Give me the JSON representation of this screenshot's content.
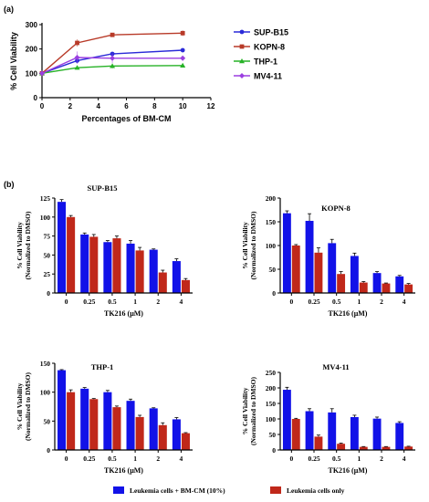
{
  "panel_a_label": "(a)",
  "panel_b_label": "(b)",
  "legend_bottom": [
    {
      "name": "Leukemia cells + BM-CM (10%)",
      "color": "#1212e8"
    },
    {
      "name": "Leukemia cells only",
      "color": "#c0281a"
    }
  ],
  "colors": {
    "blue": "#1212e8",
    "red": "#c0281a",
    "kopn": "#b83a28",
    "sup": "#2a2ad8",
    "thp": "#27b227",
    "mv4": "#9b3fe0"
  },
  "chart_data": [
    {
      "type": "line",
      "xlabel": "Percentages of BM-CM",
      "ylabel": "% Cell Viability",
      "xlim": [
        0,
        12
      ],
      "ylim": [
        0,
        300
      ],
      "xticks": [
        "0",
        "2",
        "4",
        "6",
        "8",
        "10",
        "12"
      ],
      "yticks": [
        "0",
        "100",
        "200",
        "300"
      ],
      "x": [
        0,
        2.5,
        5,
        10
      ],
      "legend_position": "right",
      "series": [
        {
          "name": "SUP-B15",
          "values": [
            100,
            152,
            180,
            195
          ],
          "errors": [
            3,
            12,
            5,
            8
          ],
          "marker": "circle",
          "color": "#2a2ad8"
        },
        {
          "name": "KOPN-8",
          "values": [
            100,
            225,
            258,
            265
          ],
          "errors": [
            3,
            15,
            5,
            12
          ],
          "marker": "square",
          "color": "#b83a28"
        },
        {
          "name": "THP-1",
          "values": [
            100,
            123,
            130,
            132
          ],
          "errors": [
            3,
            8,
            10,
            8
          ],
          "marker": "triangle",
          "color": "#27b227"
        },
        {
          "name": "MV4-11",
          "values": [
            100,
            165,
            162,
            162
          ],
          "errors": [
            3,
            25,
            20,
            10
          ],
          "marker": "diamond",
          "color": "#9b3fe0"
        }
      ]
    },
    {
      "type": "bar",
      "title": "SUP-B15",
      "xlabel": "TK216 (μM)",
      "ylabel": [
        "% Cell Viability",
        "(Normalized to DMSO)"
      ],
      "categories": [
        "0",
        "0.25",
        "0.5",
        "1",
        "2",
        "4"
      ],
      "ylim": [
        0,
        125
      ],
      "yticks": [
        "0",
        "25",
        "50",
        "75",
        "100",
        "125"
      ],
      "series": [
        {
          "name": "Leukemia cells + BM-CM (10%)",
          "values": [
            120,
            77,
            67,
            65,
            57,
            42
          ],
          "errors": [
            3,
            2,
            2,
            4,
            1,
            3
          ]
        },
        {
          "name": "Leukemia cells only",
          "values": [
            100,
            74,
            72,
            56,
            27,
            17
          ],
          "errors": [
            2,
            3,
            3,
            4,
            3,
            2
          ]
        }
      ]
    },
    {
      "type": "bar",
      "title": "KOPN-8",
      "xlabel": "TK216 (μM)",
      "ylabel": [
        "% Cell Viability",
        "(Normalized to DMSO)"
      ],
      "categories": [
        "0",
        "0.25",
        "0.5",
        "1",
        "2",
        "4"
      ],
      "ylim": [
        0,
        200
      ],
      "yticks": [
        "0",
        "50",
        "100",
        "150",
        "200"
      ],
      "series": [
        {
          "name": "Leukemia cells + BM-CM (10%)",
          "values": [
            168,
            152,
            105,
            78,
            42,
            35
          ],
          "errors": [
            5,
            15,
            8,
            6,
            3,
            2
          ]
        },
        {
          "name": "Leukemia cells only",
          "values": [
            100,
            85,
            40,
            22,
            20,
            18
          ],
          "errors": [
            2,
            10,
            5,
            2,
            1,
            2
          ]
        }
      ]
    },
    {
      "type": "bar",
      "title": "THP-1",
      "xlabel": "TK216 (μM)",
      "ylabel": [
        "% Cell Viability",
        "(Normalized to DMSO)"
      ],
      "categories": [
        "0",
        "0.25",
        "0.5",
        "1",
        "2",
        "4"
      ],
      "ylim": [
        0,
        150
      ],
      "yticks": [
        "0",
        "50",
        "100",
        "150"
      ],
      "series": [
        {
          "name": "Leukemia cells + BM-CM (10%)",
          "values": [
            138,
            106,
            100,
            85,
            72,
            53
          ],
          "errors": [
            1,
            2,
            3,
            3,
            1,
            3
          ]
        },
        {
          "name": "Leukemia cells only",
          "values": [
            100,
            88,
            74,
            57,
            43,
            29
          ],
          "errors": [
            4,
            1,
            2,
            3,
            4,
            1
          ]
        }
      ]
    },
    {
      "type": "bar",
      "title": "MV4-11",
      "xlabel": "TK216 (μM)",
      "ylabel": [
        "% Cell Viability",
        "(Normalized to DMSO)"
      ],
      "categories": [
        "0",
        "0.25",
        "0.5",
        "1",
        "2",
        "4"
      ],
      "ylim": [
        0,
        250
      ],
      "yticks": [
        "0",
        "50",
        "100",
        "150",
        "200",
        "250"
      ],
      "series": [
        {
          "name": "Leukemia cells + BM-CM (10%)",
          "values": [
            194,
            125,
            121,
            106,
            101,
            87
          ],
          "errors": [
            8,
            8,
            12,
            6,
            5,
            4
          ]
        },
        {
          "name": "Leukemia cells only",
          "values": [
            100,
            43,
            20,
            10,
            10,
            11
          ],
          "errors": [
            2,
            5,
            2,
            1,
            1,
            1
          ]
        }
      ]
    }
  ]
}
